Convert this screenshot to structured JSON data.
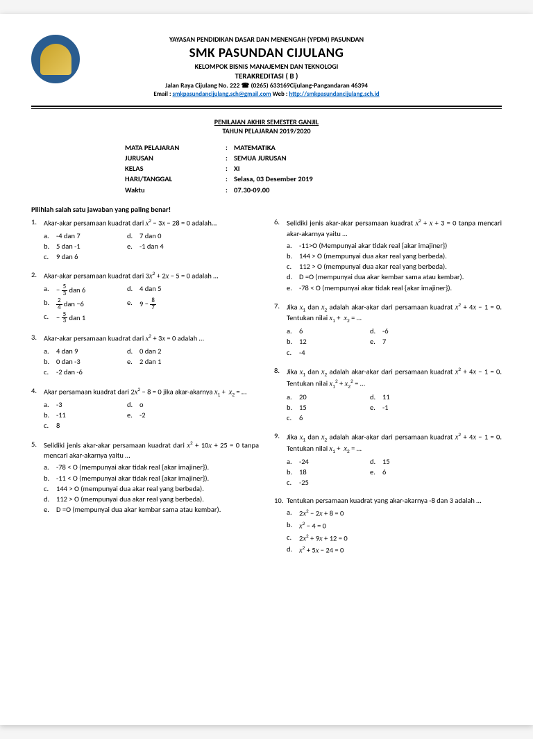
{
  "header": {
    "l1": "YAYASAN PENDIDIKAN DASAR DAN MENENGAH (YPDM) PASUNDAN",
    "l2": "SMK PASUNDAN CIJULANG",
    "l3": "KELOMPOK BISNIS  MANAJEMEN DAN TEKNOLOGI",
    "l4": "TERAKREDITASI ( B )",
    "l5": "Jalan Raya Cijulang No. 222 ☎ (0265) 633169Cijulang-Pangandaran 46394",
    "email_label": "Email : ",
    "email": "smkpasundancijulang.sch@gmail.com",
    "web_label": "  Web : ",
    "web": "http://smkpasundancijulang.sch.id"
  },
  "title": {
    "t1": "PENILAIAN AKHIR SEMESTER GANJIL",
    "t2": "TAHUN PELAJARAN 2019/2020"
  },
  "meta": [
    {
      "label": "MATA PELAJARAN",
      "value": "MATEMATIKA"
    },
    {
      "label": "JURUSAN",
      "value": "SEMUA JURUSAN"
    },
    {
      "label": "KELAS",
      "value": "XI"
    },
    {
      "label": "HARI/TANGGAL",
      "value": "Selasa, 03 Desember 2019"
    },
    {
      "label": "Waktu",
      "value": "07.30-09.00"
    }
  ],
  "instruction": "Pilihlah salah satu jawaban yang paling benar!",
  "ql": [
    {
      "n": "1.",
      "text": "Akar-akar persamaan kuadrat dari <span class='math'>x</span><sup>2</sup> − 3<span class='math'>x</span> − 28 = 0 adalah…",
      "rows": [
        [
          "a.",
          "-4 dan 7",
          "d.",
          "7 dan 0"
        ],
        [
          "b.",
          "5 dan -1",
          "e.",
          "-1 dan 4"
        ],
        [
          "c.",
          "9 dan 6"
        ]
      ]
    },
    {
      "n": "2.",
      "text": "Akar-akar persamaan kuadrat dari 3<span class='math'>x</span><sup>2</sup> + 2<span class='math'>x</span> − 5 = 0 adalah …",
      "rows": [
        [
          "a.",
          "− <span class='frac'><span class='n'>5</span><span class='d'>3</span></span> dan 6",
          "d.",
          "4 dan 5"
        ],
        [
          "b.",
          "<span class='frac'><span class='n'>2</span><span class='d'>4</span></span> dan −6",
          "e.",
          "9 − <span class='frac'><span class='n'>8</span><span class='d'>7</span></span>"
        ],
        [
          "c.",
          "− <span class='frac'><span class='n'>5</span><span class='d'>3</span></span> dan 1"
        ]
      ]
    },
    {
      "n": "3.",
      "text": "Akar-akar persamaan kuadrat dari <span class='math'>x</span><sup>2</sup> + 3<span class='math'>x</span> = 0 adalah …",
      "rows": [
        [
          "a.",
          "4 dan 9",
          "d.",
          "0 dan 2"
        ],
        [
          "b.",
          "0 dan -3",
          "e.",
          "2 dan 1"
        ],
        [
          "c.",
          "-2 dan -6"
        ]
      ]
    },
    {
      "n": "4.",
      "text": "Akar persamaan kuadrat dari 2<span class='math'>x</span><sup>2</sup> − 8 = 0 jika akar-akarnya <span class='math'>x</span><sub>1</sub> + &nbsp;<span class='math'>x</span><sub>2</sub> = …",
      "rows": [
        [
          "a.",
          "-3",
          "d.",
          "o"
        ],
        [
          "b.",
          "-11",
          "e.",
          "-2"
        ],
        [
          "c.",
          "8"
        ]
      ]
    },
    {
      "n": "5.",
      "text": "Selidiki jenis akar-akar persamaan  kuadrat dari <span class='math'>x</span><sup>2</sup> + 10<span class='math'>x</span> + 25 = 0  tanpa mencari akar-akarnya yaitu …",
      "full": [
        [
          "a.",
          "-78 &lt; O (mempunyai akar tidak real {akar imajiner})."
        ],
        [
          "b.",
          "-11 &lt; O (mempunyai akar tidak real {akar imajiner})."
        ],
        [
          "c.",
          "144 &gt; O (mempunyai dua akar real yang berbeda)."
        ],
        [
          "d.",
          "112 &gt; O (mempunyai dua akar real yang berbeda)."
        ],
        [
          "e.",
          "D =O (mempunyai dua akar kembar sama atau kembar)."
        ]
      ]
    }
  ],
  "qr": [
    {
      "n": "6.",
      "text": "Selidiki jenis akar-akar persamaan  kuadrat <span class='math'>x</span><sup>2</sup> + <span class='math'>x</span> + 3 = 0 tanpa mencari akar-akarnya yaitu …",
      "full": [
        [
          "a.",
          "-11&gt;O (Mempunyai akar tidak real {akar imajiner})"
        ],
        [
          "b.",
          "144 &gt; O (mempunyai dua akar real yang berbeda)."
        ],
        [
          "c.",
          "112 &gt; O (mempunyai dua akar real yang berbeda)."
        ],
        [
          "d.",
          "D =O (mempunyai dua akar kembar sama atau kembar)."
        ],
        [
          "e.",
          "-78 &lt; O (mempunyai akar tidak real {akar imajiner})."
        ]
      ]
    },
    {
      "n": "7.",
      "text": "Jika <span class='math'>x</span><sub>1</sub>  dan <span class='math'>x</span><sub>2</sub> adalah akar-akar dari persamaan kuadrat <span class='math'>x</span><sup>2</sup> + 4<span class='math'>x</span> − 1 = 0. Tentukan nilai <span class='math'>x</span><sub>1</sub> + &nbsp;<span class='math'>x</span><sub>2</sub> = …",
      "rows": [
        [
          "a.",
          "6",
          "d.",
          "-6"
        ],
        [
          "b.",
          "12",
          "e.",
          "7"
        ],
        [
          "c.",
          "-4"
        ]
      ]
    },
    {
      "n": "8.",
      "text": "Jika <span class='math'>x</span><sub>1</sub>  dan <span class='math'>x</span><sub>2</sub> adalah akar-akar dari persamaan kuadrat <span class='math'>x</span><sup>2</sup> + 4<span class='math'>x</span> − 1 = 0. Tentukan nilai <span class='math'>x</span><sub>1</sub><sup>2</sup> + <span class='math'>x</span><sub>2</sub><sup>2</sup> = …",
      "rows": [
        [
          "a.",
          "20",
          "d.",
          "11"
        ],
        [
          "b.",
          "15",
          "e.",
          "-1"
        ],
        [
          "c.",
          "6"
        ]
      ]
    },
    {
      "n": "9.",
      "text": "Jika <span class='math'>x</span><sub>1</sub>  dan <span class='math'>x</span><sub>2</sub> adalah akar-akar dari persamaan kuadrat <span class='math'>x</span><sup>2</sup> + 4<span class='math'>x</span> − 1 = 0. Tentukan nilai <span class='math'>x</span><sub>1</sub> + &nbsp;<span class='math'>x</span><sub>2</sub> = …",
      "rows": [
        [
          "a.",
          "-24",
          "d.",
          "15"
        ],
        [
          "b.",
          "18",
          "e.",
          "6"
        ],
        [
          "c.",
          "-25"
        ]
      ]
    },
    {
      "n": "10.",
      "text": "Tentukan persamaan kuadrat yang akar-akarnya -8 dan 3 adalah …",
      "full": [
        [
          "a.",
          "2<span class='math'>x</span><sup>2</sup> − 2<span class='math'>x</span> + 8 = 0"
        ],
        [
          "b.",
          "<span class='math'>x</span><sup>2</sup> − 4 = 0"
        ],
        [
          "c.",
          "2<span class='math'>x</span><sup>2</sup> + 9<span class='math'>x</span> + 12 = 0"
        ],
        [
          "d.",
          "<span class='math'>x</span><sup>2</sup> + 5<span class='math'>x</span> − 24 = 0"
        ]
      ]
    }
  ]
}
